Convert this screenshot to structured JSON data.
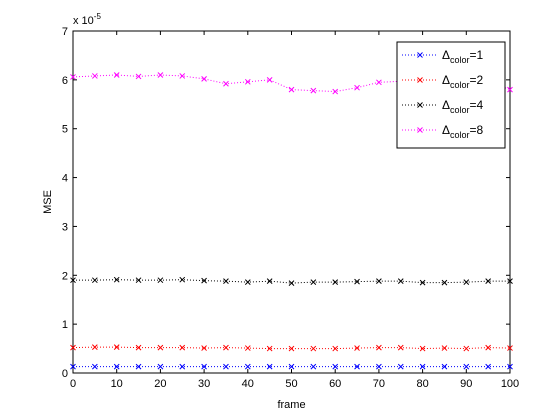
{
  "chart_data": {
    "type": "line",
    "title": "",
    "xlabel": "frame",
    "ylabel": "MSE",
    "xlim": [
      0,
      100
    ],
    "ylim": [
      0,
      7
    ],
    "xticks": [
      0,
      10,
      20,
      30,
      40,
      50,
      60,
      70,
      80,
      90,
      100
    ],
    "yticks": [
      0,
      1,
      2,
      3,
      4,
      5,
      6,
      7
    ],
    "y_multiplier_label": {
      "base": "x 10",
      "exponent": "-5"
    },
    "legend_position": "top-right",
    "grid": false,
    "marker": "x",
    "line_style": "dotted",
    "x": [
      0,
      5,
      10,
      15,
      20,
      25,
      30,
      35,
      40,
      45,
      50,
      55,
      60,
      65,
      70,
      75,
      80,
      85,
      90,
      95,
      100
    ],
    "series": [
      {
        "legend": {
          "prefix": "Δ",
          "subscript": "color",
          "suffix": "=1"
        },
        "color": "#0000ff",
        "values": [
          0.13,
          0.13,
          0.13,
          0.13,
          0.13,
          0.13,
          0.13,
          0.13,
          0.13,
          0.13,
          0.13,
          0.13,
          0.13,
          0.13,
          0.13,
          0.13,
          0.13,
          0.13,
          0.13,
          0.13,
          0.13
        ]
      },
      {
        "legend": {
          "prefix": "Δ",
          "subscript": "color",
          "suffix": "=2"
        },
        "color": "#ff0000",
        "values": [
          0.52,
          0.53,
          0.53,
          0.52,
          0.52,
          0.52,
          0.51,
          0.52,
          0.51,
          0.5,
          0.5,
          0.5,
          0.5,
          0.51,
          0.52,
          0.52,
          0.5,
          0.51,
          0.5,
          0.52,
          0.51
        ]
      },
      {
        "legend": {
          "prefix": "Δ",
          "subscript": "color",
          "suffix": "=4"
        },
        "color": "#000000",
        "values": [
          1.9,
          1.9,
          1.91,
          1.9,
          1.9,
          1.91,
          1.89,
          1.88,
          1.86,
          1.88,
          1.84,
          1.86,
          1.86,
          1.87,
          1.88,
          1.88,
          1.85,
          1.85,
          1.86,
          1.88,
          1.88
        ]
      },
      {
        "legend": {
          "prefix": "Δ",
          "subscript": "color",
          "suffix": "=8"
        },
        "color": "#ff00ff",
        "values": [
          6.06,
          6.08,
          6.1,
          6.07,
          6.1,
          6.08,
          6.02,
          5.92,
          5.96,
          6.0,
          5.8,
          5.78,
          5.76,
          5.84,
          5.95,
          5.97,
          5.92,
          5.88,
          5.9,
          5.97,
          5.8
        ]
      }
    ]
  }
}
